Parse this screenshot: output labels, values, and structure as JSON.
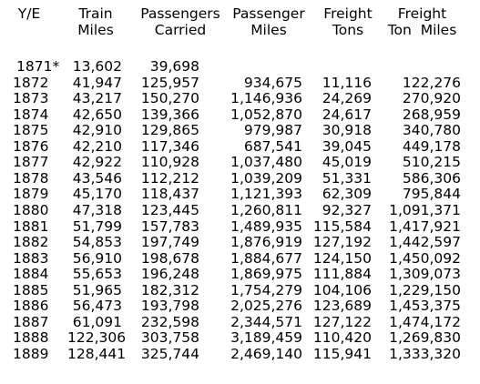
{
  "headers": [
    [
      "Y/E"
    ],
    [
      "Train",
      "Miles"
    ],
    [
      "Passengers",
      "Carried"
    ],
    [
      "Passenger",
      "Miles"
    ],
    [
      "Freight",
      "Tons"
    ],
    [
      "Freight",
      "Ton  Miles"
    ]
  ],
  "rows": [
    [
      "1871*",
      "13,602",
      "39,698",
      "",
      "",
      ""
    ],
    [
      "1872",
      "41,947",
      "125,957",
      "934,675",
      "11,116",
      "122,276"
    ],
    [
      "1873",
      "43,217",
      "150,270",
      "1,146,936",
      "24,269",
      "270,920"
    ],
    [
      "1874",
      "42,650",
      "139,366",
      "1,052,870",
      "24,617",
      "268,959"
    ],
    [
      "1875",
      "42,910",
      "129,865",
      "979,987",
      "30,918",
      "340,780"
    ],
    [
      "1876",
      "42,210",
      "117,346",
      "687,541",
      "39,045",
      "449,178"
    ],
    [
      "1877",
      "42,922",
      "110,928",
      "1,037,480",
      "45,019",
      "510,215"
    ],
    [
      "1878",
      "43,546",
      "112,212",
      "1,039,209",
      "51,331",
      "586,306"
    ],
    [
      "1879",
      "45,170",
      "118,437",
      "1,121,393",
      "62,309",
      "795,844"
    ],
    [
      "1880",
      "47,318",
      "123,445",
      "1,260,811",
      "92,327",
      "1,091,371"
    ],
    [
      "1881",
      "51,799",
      "157,783",
      "1,489,935",
      "115,584",
      "1,417,921"
    ],
    [
      "1882",
      "54,853",
      "197,749",
      "1,876,919",
      "127,192",
      "1,442,597"
    ],
    [
      "1883",
      "56,910",
      "198,678",
      "1,884,677",
      "124,150",
      "1,450,092"
    ],
    [
      "1884",
      "55,653",
      "196,248",
      "1,869,975",
      "111,884",
      "1,309,073"
    ],
    [
      "1885",
      "51,965",
      "182,312",
      "1,754,279",
      "104,106",
      "1,229,150"
    ],
    [
      "1886",
      "56,473",
      "193,798",
      "2,025,276",
      "123,689",
      "1,453,375"
    ],
    [
      "1887",
      "61,091",
      "232,598",
      "2,344,571",
      "127,122",
      "1,474,172"
    ],
    [
      "1888",
      "122,306",
      "303,758",
      "3,189,459",
      "110,420",
      "1,269,830"
    ],
    [
      "1889",
      "128,441",
      "325,744",
      "2,469,140",
      "115,941",
      "1,333,320"
    ]
  ]
}
